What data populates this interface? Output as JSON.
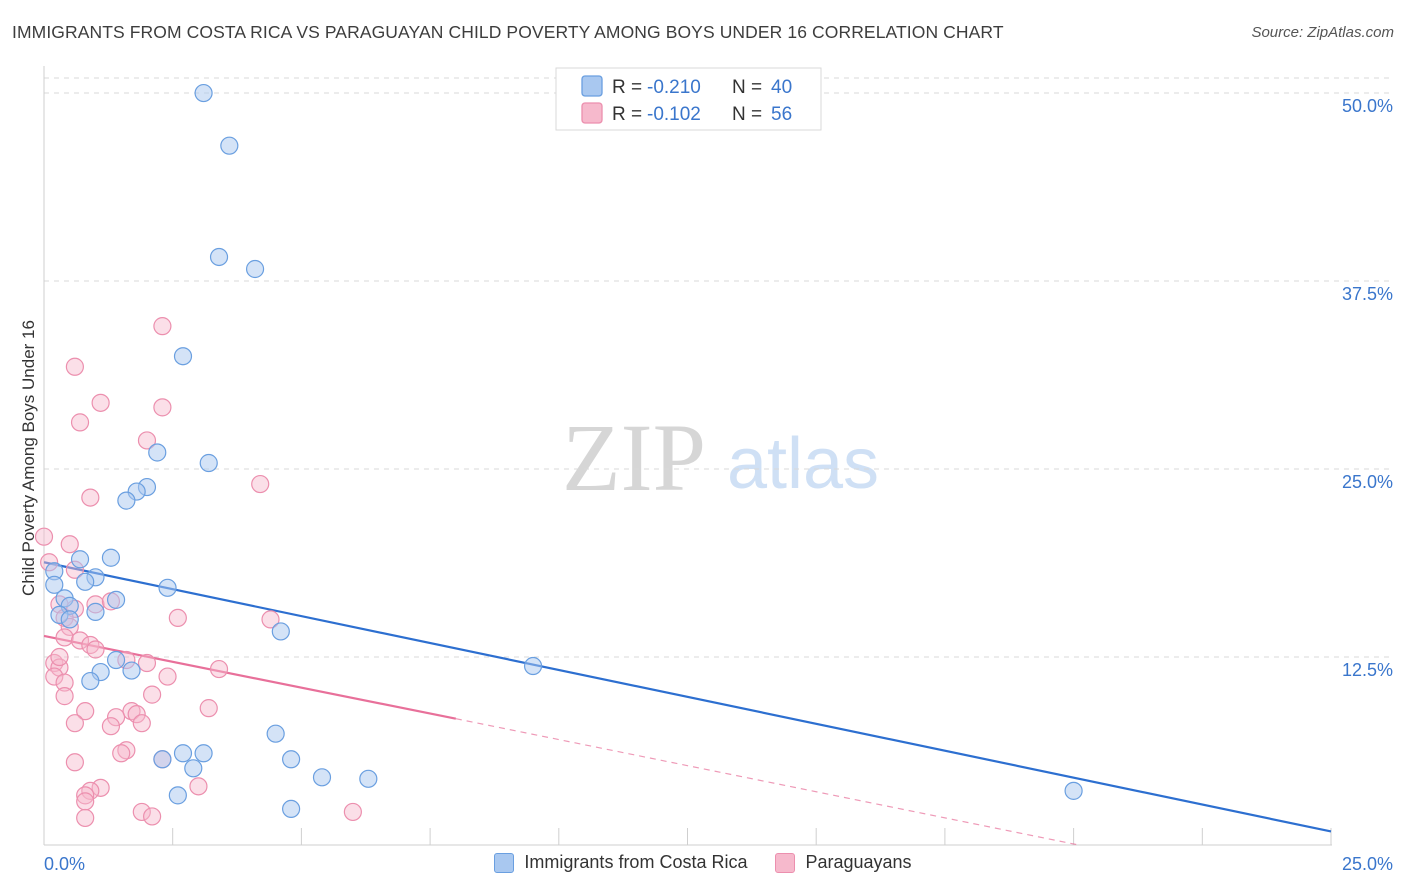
{
  "title": "IMMIGRANTS FROM COSTA RICA VS PARAGUAYAN CHILD POVERTY AMONG BOYS UNDER 16 CORRELATION CHART",
  "source": "Source: ZipAtlas.com",
  "watermark": {
    "zip": "ZIP",
    "atlas": "atlas"
  },
  "colors": {
    "blue_fill": "#a9c8f0",
    "blue_stroke": "#6a9fe0",
    "blue_line": "#2d6fd0",
    "pink_fill": "#f6b9cc",
    "pink_stroke": "#ec8fae",
    "pink_line": "#e8709a",
    "axis_label": "#3a76cc",
    "grid": "#d8d8d8"
  },
  "stats_legend": [
    {
      "series": "blue",
      "r_label": "R = ",
      "r_value": "-0.210",
      "n_label": "N = ",
      "n_value": "40"
    },
    {
      "series": "pink",
      "r_label": "R = ",
      "r_value": "-0.102",
      "n_label": "N = ",
      "n_value": "56"
    }
  ],
  "chart_data": {
    "type": "scatter",
    "title": "IMMIGRANTS FROM COSTA RICA VS PARAGUAYAN CHILD POVERTY AMONG BOYS UNDER 16 CORRELATION CHART",
    "xlabel": "",
    "ylabel": "Child Poverty Among Boys Under 16",
    "xlim": [
      0,
      25
    ],
    "ylim": [
      0,
      51
    ],
    "x_tick_labels": [
      {
        "value": 0,
        "label": "0.0%"
      },
      {
        "value": 25,
        "label": "25.0%"
      }
    ],
    "y_tick_labels": [
      {
        "value": 12.5,
        "label": "12.5%"
      },
      {
        "value": 25,
        "label": "25.0%"
      },
      {
        "value": 37.5,
        "label": "37.5%"
      },
      {
        "value": 50,
        "label": "50.0%"
      }
    ],
    "x_minor_ticks": [
      2.5,
      5,
      7.5,
      10,
      12.5,
      15,
      17.5,
      20,
      22.5,
      25
    ],
    "legend_position": "bottom-center",
    "series": [
      {
        "name": "Immigrants from Costa Rica",
        "color": "blue",
        "points": [
          [
            3.1,
            50.0
          ],
          [
            3.6,
            46.5
          ],
          [
            3.4,
            39.1
          ],
          [
            4.1,
            38.3
          ],
          [
            2.7,
            32.5
          ],
          [
            2.2,
            26.1
          ],
          [
            3.2,
            25.4
          ],
          [
            2.0,
            23.8
          ],
          [
            1.8,
            23.5
          ],
          [
            1.6,
            22.9
          ],
          [
            0.2,
            18.2
          ],
          [
            0.7,
            19.0
          ],
          [
            1.3,
            19.1
          ],
          [
            0.2,
            17.3
          ],
          [
            1.0,
            17.8
          ],
          [
            0.8,
            17.5
          ],
          [
            1.4,
            16.3
          ],
          [
            2.4,
            17.1
          ],
          [
            0.4,
            16.4
          ],
          [
            0.5,
            15.9
          ],
          [
            0.3,
            15.3
          ],
          [
            0.5,
            15.0
          ],
          [
            1.0,
            15.5
          ],
          [
            4.6,
            14.2
          ],
          [
            1.4,
            12.3
          ],
          [
            1.7,
            11.6
          ],
          [
            1.1,
            11.5
          ],
          [
            0.9,
            10.9
          ],
          [
            9.5,
            11.9
          ],
          [
            4.5,
            7.4
          ],
          [
            2.7,
            6.1
          ],
          [
            3.1,
            6.1
          ],
          [
            2.3,
            5.7
          ],
          [
            4.8,
            5.7
          ],
          [
            2.9,
            5.1
          ],
          [
            5.4,
            4.5
          ],
          [
            6.3,
            4.4
          ],
          [
            2.6,
            3.3
          ],
          [
            4.8,
            2.4
          ],
          [
            20.0,
            3.6
          ]
        ],
        "trend_line": {
          "x": [
            0,
            25
          ],
          "y": [
            18.8,
            0.9
          ],
          "style": "solid"
        }
      },
      {
        "name": "Paraguayans",
        "color": "pink",
        "points": [
          [
            0.0,
            20.5
          ],
          [
            0.1,
            18.8
          ],
          [
            0.6,
            18.3
          ],
          [
            0.5,
            20.0
          ],
          [
            2.3,
            34.5
          ],
          [
            0.6,
            31.8
          ],
          [
            1.1,
            29.4
          ],
          [
            2.3,
            29.1
          ],
          [
            0.7,
            28.1
          ],
          [
            2.0,
            26.9
          ],
          [
            0.9,
            23.1
          ],
          [
            4.2,
            24.0
          ],
          [
            0.3,
            16.0
          ],
          [
            0.6,
            15.7
          ],
          [
            1.0,
            16.0
          ],
          [
            1.3,
            16.2
          ],
          [
            0.4,
            15.1
          ],
          [
            2.6,
            15.1
          ],
          [
            4.4,
            15.0
          ],
          [
            0.5,
            14.5
          ],
          [
            0.4,
            13.8
          ],
          [
            0.7,
            13.6
          ],
          [
            0.9,
            13.3
          ],
          [
            1.0,
            13.0
          ],
          [
            1.6,
            12.3
          ],
          [
            2.0,
            12.1
          ],
          [
            0.2,
            12.1
          ],
          [
            0.3,
            11.8
          ],
          [
            0.3,
            12.5
          ],
          [
            3.4,
            11.7
          ],
          [
            0.2,
            11.2
          ],
          [
            0.4,
            10.8
          ],
          [
            2.4,
            11.2
          ],
          [
            0.4,
            9.9
          ],
          [
            2.1,
            10.0
          ],
          [
            3.2,
            9.1
          ],
          [
            0.8,
            8.9
          ],
          [
            1.7,
            8.9
          ],
          [
            1.8,
            8.7
          ],
          [
            1.4,
            8.5
          ],
          [
            0.6,
            8.1
          ],
          [
            1.3,
            7.9
          ],
          [
            1.9,
            8.1
          ],
          [
            1.6,
            6.3
          ],
          [
            1.5,
            6.1
          ],
          [
            2.3,
            5.7
          ],
          [
            0.6,
            5.5
          ],
          [
            3.0,
            3.9
          ],
          [
            1.1,
            3.8
          ],
          [
            0.9,
            3.6
          ],
          [
            0.8,
            3.3
          ],
          [
            0.8,
            2.9
          ],
          [
            1.9,
            2.2
          ],
          [
            6.0,
            2.2
          ],
          [
            2.1,
            1.9
          ],
          [
            0.8,
            1.8
          ]
        ],
        "trend_line": {
          "x": [
            0,
            8
          ],
          "y": [
            13.9,
            8.4
          ],
          "style": "solid"
        },
        "trend_extension": {
          "x": [
            8,
            20.1
          ],
          "y": [
            8.4,
            0.0
          ],
          "style": "dashed"
        }
      }
    ]
  }
}
